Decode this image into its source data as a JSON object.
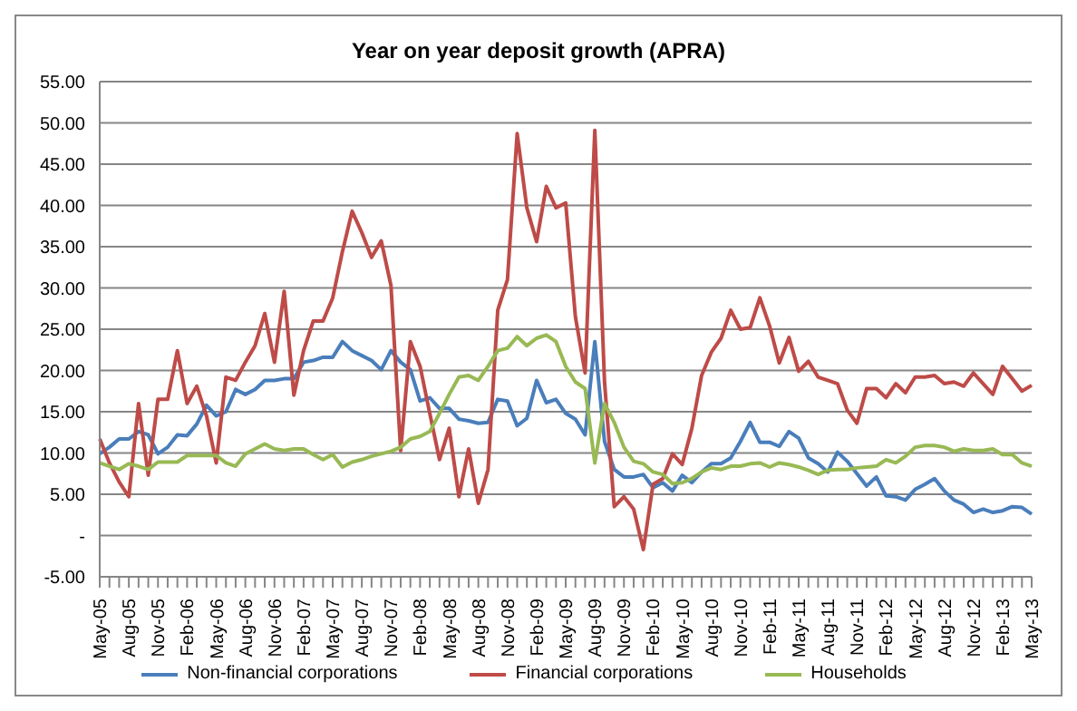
{
  "chart_data": {
    "type": "line",
    "title": "Year on year deposit growth (APRA)",
    "categories": [
      "May-05",
      null,
      null,
      "Aug-05",
      null,
      null,
      "Nov-05",
      null,
      null,
      "Feb-06",
      null,
      null,
      "May-06",
      null,
      null,
      "Aug-06",
      null,
      null,
      "Nov-06",
      null,
      null,
      "Feb-07",
      null,
      null,
      "May-07",
      null,
      null,
      "Aug-07",
      null,
      null,
      "Nov-07",
      null,
      null,
      "Feb-08",
      null,
      null,
      "May-08",
      null,
      null,
      "Aug-08",
      null,
      null,
      "Nov-08",
      null,
      null,
      "Feb-09",
      null,
      null,
      "May-09",
      null,
      null,
      "Aug-09",
      null,
      null,
      "Nov-09",
      null,
      null,
      "Feb-10",
      null,
      null,
      "May-10",
      null,
      null,
      "Aug-10",
      null,
      null,
      "Nov-10",
      null,
      null,
      "Feb-11",
      null,
      null,
      "May-11",
      null,
      null,
      "Aug-11",
      null,
      null,
      "Nov-11",
      null,
      null,
      "Feb-12",
      null,
      null,
      "May-12",
      null,
      null,
      "Aug-12",
      null,
      null,
      "Nov-12",
      null,
      null,
      "Feb-13",
      null,
      null,
      "May-13"
    ],
    "series": [
      {
        "name": "Non-financial corporations",
        "color": "#4a7ebb",
        "values": [
          9.9,
          10.7,
          11.7,
          11.7,
          12.6,
          12.2,
          9.9,
          10.7,
          12.2,
          12.1,
          13.5,
          15.8,
          14.5,
          15,
          17.7,
          17.1,
          17.7,
          18.8,
          18.8,
          19,
          19,
          21,
          21.2,
          21.6,
          21.6,
          23.5,
          22.4,
          21.8,
          21.2,
          20.1,
          22.4,
          21,
          20.1,
          16.3,
          16.7,
          15.4,
          15.4,
          14.1,
          13.9,
          13.6,
          13.7,
          16.5,
          16.3,
          13.3,
          14.2,
          18.8,
          16.1,
          16.5,
          14.8,
          14.1,
          12.2,
          23.5,
          11.4,
          8,
          7.1,
          7.1,
          7.4,
          5.8,
          6.4,
          5.4,
          7.3,
          6.4,
          7.7,
          8.7,
          8.7,
          9.4,
          11.4,
          13.7,
          11.3,
          11.3,
          10.8,
          12.6,
          11.8,
          9.4,
          8.7,
          7.7,
          10.1,
          9,
          7.5,
          6,
          7.1,
          4.8,
          4.7,
          4.3,
          5.6,
          6.2,
          6.9,
          5.4,
          4.3,
          3.8,
          2.8,
          3.2,
          2.8,
          3,
          3.5,
          3.4,
          2.6
        ]
      },
      {
        "name": "Financial corporations",
        "color": "#be4b48",
        "values": [
          11.7,
          8.8,
          6.5,
          4.7,
          16,
          7.3,
          16.5,
          16.5,
          22.4,
          16,
          18.1,
          14.5,
          8.8,
          19.2,
          18.8,
          21,
          23,
          26.9,
          21,
          29.6,
          17,
          22.4,
          26,
          26,
          28.8,
          34.4,
          39.3,
          36.7,
          33.7,
          35.7,
          30.3,
          10.3,
          23.5,
          20.5,
          14.8,
          9.2,
          13,
          4.7,
          10.5,
          3.9,
          8,
          27.3,
          31,
          48.7,
          39.7,
          35.6,
          42.3,
          39.7,
          40.3,
          26.5,
          19.7,
          49.1,
          18.6,
          3.5,
          4.7,
          3.2,
          -1.7,
          6.2,
          6.9,
          9.9,
          8.6,
          13,
          19.4,
          22.2,
          23.9,
          27.3,
          25,
          25.2,
          28.8,
          25.4,
          20.9,
          24,
          19.9,
          21.1,
          19.2,
          18.8,
          18.4,
          15.2,
          13.6,
          17.8,
          17.8,
          16.7,
          18.4,
          17.3,
          19.2,
          19.2,
          19.4,
          18.4,
          18.6,
          18.1,
          19.7,
          18.4,
          17.1,
          20.5,
          19,
          17.5,
          18.2
        ]
      },
      {
        "name": "Households",
        "color": "#98b954",
        "values": [
          8.8,
          8.4,
          8,
          8.7,
          8.4,
          8,
          8.9,
          8.9,
          8.9,
          9.7,
          9.7,
          9.7,
          9.7,
          8.8,
          8.4,
          9.9,
          10.5,
          11.1,
          10.5,
          10.3,
          10.5,
          10.5,
          9.8,
          9.2,
          9.8,
          8.3,
          8.9,
          9.2,
          9.6,
          9.9,
          10.2,
          10.7,
          11.7,
          12,
          12.6,
          14.8,
          17.1,
          19.2,
          19.4,
          18.8,
          20.5,
          22.4,
          22.7,
          24.1,
          23,
          23.9,
          24.3,
          23.5,
          20.5,
          18.6,
          17.8,
          8.8,
          16,
          13.7,
          10.7,
          9,
          8.7,
          7.7,
          7.4,
          6.3,
          6.4,
          6.9,
          7.7,
          8.2,
          8,
          8.4,
          8.4,
          8.7,
          8.8,
          8.3,
          8.8,
          8.6,
          8.3,
          7.9,
          7.4,
          7.9,
          8,
          8,
          8.2,
          8.3,
          8.4,
          9.2,
          8.8,
          9.6,
          10.7,
          10.9,
          10.9,
          10.7,
          10.2,
          10.5,
          10.3,
          10.3,
          10.5,
          9.8,
          9.8,
          8.8,
          8.4
        ]
      }
    ],
    "ylim": [
      -5,
      55
    ],
    "yticks": [
      {
        "value": -5,
        "label": "-5.00"
      },
      {
        "value": 0,
        "label": "-"
      },
      {
        "value": 5,
        "label": "5.00"
      },
      {
        "value": 10,
        "label": "10.00"
      },
      {
        "value": 15,
        "label": "15.00"
      },
      {
        "value": 20,
        "label": "20.00"
      },
      {
        "value": 25,
        "label": "25.00"
      },
      {
        "value": 30,
        "label": "30.00"
      },
      {
        "value": 35,
        "label": "35.00"
      },
      {
        "value": 40,
        "label": "40.00"
      },
      {
        "value": 45,
        "label": "45.00"
      },
      {
        "value": 50,
        "label": "50.00"
      },
      {
        "value": 55,
        "label": "55.00"
      }
    ],
    "grid": "y",
    "legend": "bottom"
  }
}
